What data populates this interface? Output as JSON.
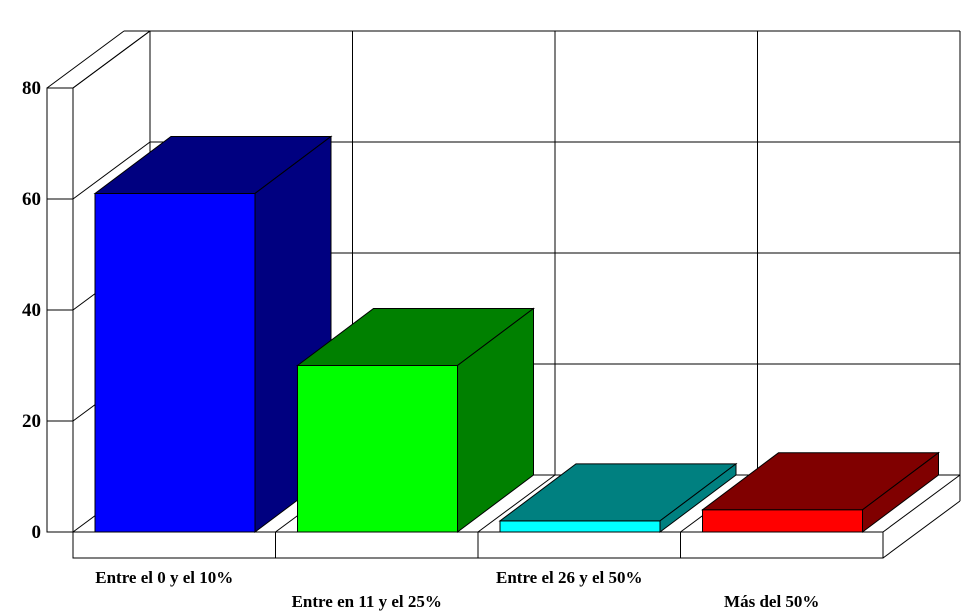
{
  "chart_data": {
    "type": "bar",
    "categories": [
      "Entre el 0 y el 10%",
      "Entre en 11 y el 25%",
      "Entre el 26 y el 50%",
      "Más del 50%"
    ],
    "values": [
      61,
      30,
      2,
      4
    ],
    "ylim": [
      0,
      80
    ],
    "yticks": [
      0,
      20,
      40,
      60,
      80
    ],
    "grid": true,
    "three_d": true,
    "colors": {
      "front": [
        "#0000ff",
        "#00ff00",
        "#00ffff",
        "#ff0000"
      ],
      "side": [
        "#000080",
        "#008000",
        "#008080",
        "#800000"
      ]
    },
    "grid_color": "#000000",
    "background": "#ffffff"
  }
}
